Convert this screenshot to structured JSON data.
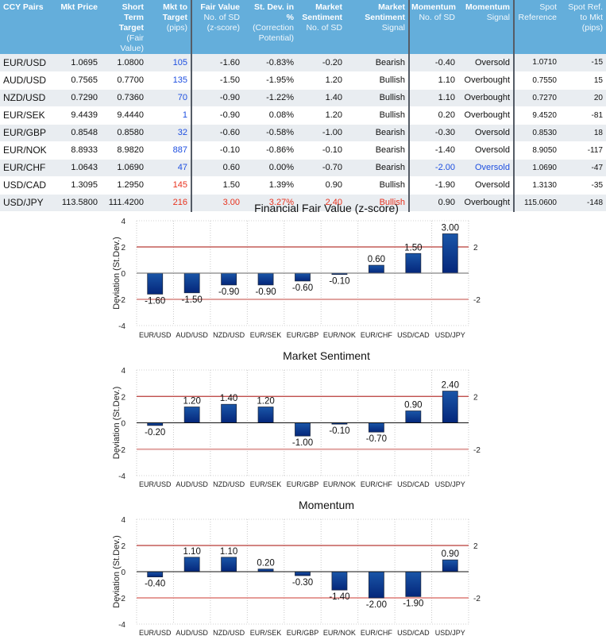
{
  "table": {
    "headers": [
      {
        "bold": "CCY Pairs",
        "normal": ""
      },
      {
        "bold": "Mkt Price",
        "normal": ""
      },
      {
        "bold": "Short Term Target",
        "normal": "(Fair Value)"
      },
      {
        "bold": "Mkt to Target",
        "normal": "(pips)"
      },
      {
        "bold": "Fair Value",
        "normal": "No. of SD (z-score)"
      },
      {
        "bold": "St. Dev. in %",
        "normal": "(Correction Potential)"
      },
      {
        "bold": "Market Sentiment",
        "normal": "No. of SD"
      },
      {
        "bold": "Market Sentiment",
        "normal": "Signal"
      },
      {
        "bold": "Momentum",
        "normal": "No. of SD"
      },
      {
        "bold": "Momentum",
        "normal": "Signal"
      },
      {
        "bold": "",
        "normal": "Spot Reference"
      },
      {
        "bold": "",
        "normal": "Spot Ref. to Mkt (pips)"
      }
    ],
    "rows": [
      {
        "pair": "EUR/USD",
        "mkt_price": "1.0695",
        "target": "1.0800",
        "pips": "105",
        "pips_color": "blue",
        "fv_sd": "-1.60",
        "fv_color": "",
        "stdev_pct": "-0.83%",
        "ms_sd": "-0.20",
        "ms_color": "",
        "ms_signal": "Bearish",
        "mom_sd": "-0.40",
        "mom_color": "",
        "mom_signal": "Oversold",
        "spot_ref": "1.0710",
        "spot_pips": "-15"
      },
      {
        "pair": "AUD/USD",
        "mkt_price": "0.7565",
        "target": "0.7700",
        "pips": "135",
        "pips_color": "blue",
        "fv_sd": "-1.50",
        "fv_color": "",
        "stdev_pct": "-1.95%",
        "ms_sd": "1.20",
        "ms_color": "",
        "ms_signal": "Bullish",
        "mom_sd": "1.10",
        "mom_color": "",
        "mom_signal": "Overbought",
        "spot_ref": "0.7550",
        "spot_pips": "15"
      },
      {
        "pair": "NZD/USD",
        "mkt_price": "0.7290",
        "target": "0.7360",
        "pips": "70",
        "pips_color": "blue",
        "fv_sd": "-0.90",
        "fv_color": "",
        "stdev_pct": "-1.22%",
        "ms_sd": "1.40",
        "ms_color": "",
        "ms_signal": "Bullish",
        "mom_sd": "1.10",
        "mom_color": "",
        "mom_signal": "Overbought",
        "spot_ref": "0.7270",
        "spot_pips": "20"
      },
      {
        "pair": "EUR/SEK",
        "mkt_price": "9.4439",
        "target": "9.4440",
        "pips": "1",
        "pips_color": "blue",
        "fv_sd": "-0.90",
        "fv_color": "",
        "stdev_pct": "0.08%",
        "ms_sd": "1.20",
        "ms_color": "",
        "ms_signal": "Bullish",
        "mom_sd": "0.20",
        "mom_color": "",
        "mom_signal": "Overbought",
        "spot_ref": "9.4520",
        "spot_pips": "-81"
      },
      {
        "pair": "EUR/GBP",
        "mkt_price": "0.8548",
        "target": "0.8580",
        "pips": "32",
        "pips_color": "blue",
        "fv_sd": "-0.60",
        "fv_color": "",
        "stdev_pct": "-0.58%",
        "ms_sd": "-1.00",
        "ms_color": "",
        "ms_signal": "Bearish",
        "mom_sd": "-0.30",
        "mom_color": "",
        "mom_signal": "Oversold",
        "spot_ref": "0.8530",
        "spot_pips": "18"
      },
      {
        "pair": "EUR/NOK",
        "mkt_price": "8.8933",
        "target": "8.9820",
        "pips": "887",
        "pips_color": "blue",
        "fv_sd": "-0.10",
        "fv_color": "",
        "stdev_pct": "-0.86%",
        "ms_sd": "-0.10",
        "ms_color": "",
        "ms_signal": "Bearish",
        "mom_sd": "-1.40",
        "mom_color": "",
        "mom_signal": "Oversold",
        "spot_ref": "8.9050",
        "spot_pips": "-117"
      },
      {
        "pair": "EUR/CHF",
        "mkt_price": "1.0643",
        "target": "1.0690",
        "pips": "47",
        "pips_color": "blue",
        "fv_sd": "0.60",
        "fv_color": "",
        "stdev_pct": "0.00%",
        "ms_sd": "-0.70",
        "ms_color": "",
        "ms_signal": "Bearish",
        "mom_sd": "-2.00",
        "mom_color": "blue",
        "mom_signal": "Oversold",
        "spot_ref": "1.0690",
        "spot_pips": "-47"
      },
      {
        "pair": "USD/CAD",
        "mkt_price": "1.3095",
        "target": "1.2950",
        "pips": "145",
        "pips_color": "red",
        "fv_sd": "1.50",
        "fv_color": "",
        "stdev_pct": "1.39%",
        "ms_sd": "0.90",
        "ms_color": "",
        "ms_signal": "Bullish",
        "mom_sd": "-1.90",
        "mom_color": "",
        "mom_signal": "Oversold",
        "spot_ref": "1.3130",
        "spot_pips": "-35"
      },
      {
        "pair": "USD/JPY",
        "mkt_price": "113.5800",
        "target": "111.4200",
        "pips": "216",
        "pips_color": "red",
        "fv_sd": "3.00",
        "fv_color": "red",
        "stdev_pct": "3.27%",
        "ms_sd": "2.40",
        "ms_color": "red",
        "ms_signal": "Bullish",
        "mom_sd": "0.90",
        "mom_color": "",
        "mom_signal": "Overbought",
        "spot_ref": "115.0600",
        "spot_pips": "-148"
      }
    ]
  },
  "colors": {
    "header_bg": "#64aedb",
    "row_alt_bg": "#e9edf1",
    "highlight_blue": "#1e4fe0",
    "highlight_red": "#e8321e",
    "bar_fill": "#0b3a8f",
    "threshold_line": "#b83a36"
  },
  "chart_data": [
    {
      "type": "bar",
      "title": "Financial Fair Value (z-score)",
      "xlabel": "",
      "ylabel": "Deviation (St.Dev.)",
      "ylim": [
        -4,
        4
      ],
      "yticks": [
        "4",
        "2",
        "0",
        "-2",
        "-4"
      ],
      "right_ticks": [
        "2",
        "-2"
      ],
      "thresholds": [
        2,
        -2
      ],
      "grid": "vertical dotted",
      "categories": [
        "EUR/USD",
        "AUD/USD",
        "NZD/USD",
        "EUR/SEK",
        "EUR/GBP",
        "EUR/NOK",
        "EUR/CHF",
        "USD/CAD",
        "USD/JPY"
      ],
      "values": [
        -1.6,
        -1.5,
        -0.9,
        -0.9,
        -0.6,
        -0.1,
        0.6,
        1.5,
        3.0
      ],
      "labels": [
        "-1.60",
        "-1.50",
        "-0.90",
        "-0.90",
        "-0.60",
        "-0.10",
        "0.60",
        "1.50",
        "3.00"
      ]
    },
    {
      "type": "bar",
      "title": "Market Sentiment",
      "xlabel": "",
      "ylabel": "Deviation (St.Dev.)",
      "ylim": [
        -4,
        4
      ],
      "yticks": [
        "4",
        "2",
        "0",
        "-2",
        "-4"
      ],
      "right_ticks": [
        "2",
        "-2"
      ],
      "thresholds": [
        2,
        -2
      ],
      "grid": "vertical dotted",
      "categories": [
        "EUR/USD",
        "AUD/USD",
        "NZD/USD",
        "EUR/SEK",
        "EUR/GBP",
        "EUR/NOK",
        "EUR/CHF",
        "USD/CAD",
        "USD/JPY"
      ],
      "values": [
        -0.2,
        1.2,
        1.4,
        1.2,
        -1.0,
        -0.1,
        -0.7,
        0.9,
        2.4
      ],
      "labels": [
        "-0.20",
        "1.20",
        "1.40",
        "1.20",
        "-1.00",
        "-0.10",
        "-0.70",
        "0.90",
        "2.40"
      ]
    },
    {
      "type": "bar",
      "title": "Momentum",
      "xlabel": "",
      "ylabel": "Deviation (St.Dev.)",
      "ylim": [
        -4,
        4
      ],
      "yticks": [
        "4",
        "2",
        "0",
        "-2",
        "-4"
      ],
      "right_ticks": [
        "2",
        "-2"
      ],
      "thresholds": [
        2,
        -2
      ],
      "grid": "vertical dotted",
      "categories": [
        "EUR/USD",
        "AUD/USD",
        "NZD/USD",
        "EUR/SEK",
        "EUR/GBP",
        "EUR/NOK",
        "EUR/CHF",
        "USD/CAD",
        "USD/JPY"
      ],
      "values": [
        -0.4,
        1.1,
        1.1,
        0.2,
        -0.3,
        -1.4,
        -2.0,
        -1.9,
        0.9
      ],
      "labels": [
        "-0.40",
        "1.10",
        "1.10",
        "0.20",
        "-0.30",
        "-1.40",
        "-2.00",
        "-1.90",
        "0.90"
      ]
    }
  ]
}
